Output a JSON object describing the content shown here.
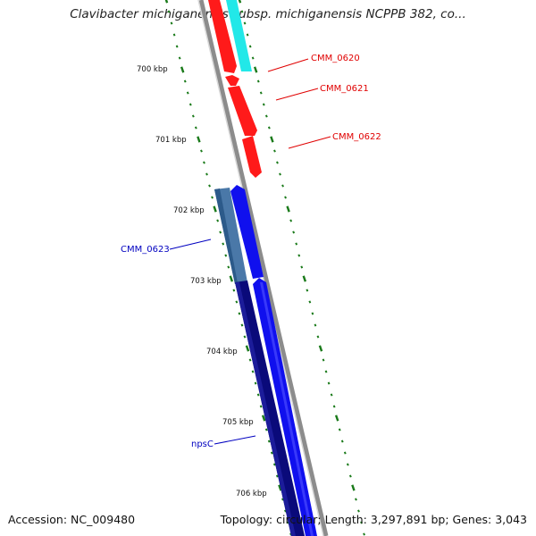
{
  "title": "Clavibacter michiganensis subsp. michiganensis NCPPB 382, co...",
  "footer": {
    "accession": "Accession: NC_009480",
    "summary": "Topology: circular; Length: 3,297,891 bp; Genes: 3,043"
  },
  "ticks": [
    {
      "label": "700 kbp"
    },
    {
      "label": "701 kbp"
    },
    {
      "label": "702 kbp"
    },
    {
      "label": "703 kbp"
    },
    {
      "label": "704 kbp"
    },
    {
      "label": "705 kbp"
    },
    {
      "label": "706 kbp"
    }
  ],
  "genes": [
    {
      "label": "CMM_0620",
      "color": "#e00000"
    },
    {
      "label": "CMM_0621",
      "color": "#e00000"
    },
    {
      "label": "CMM_0622",
      "color": "#e00000"
    },
    {
      "label": "CMM_0623",
      "color": "#0000c0"
    },
    {
      "label": "npsC",
      "color": "#0000c0"
    }
  ],
  "colors": {
    "forward_strand_red": "#ff1a1a",
    "reverse_strand_cyan": "#22e8e8",
    "forward_strand_blue": "#1010ee",
    "reverse_strand_steel": "#4a78a8",
    "reverse_strand_navy": "#0a0a7a",
    "backbone": "#8c8c8c",
    "tick_marks": "#1a7a1a"
  }
}
